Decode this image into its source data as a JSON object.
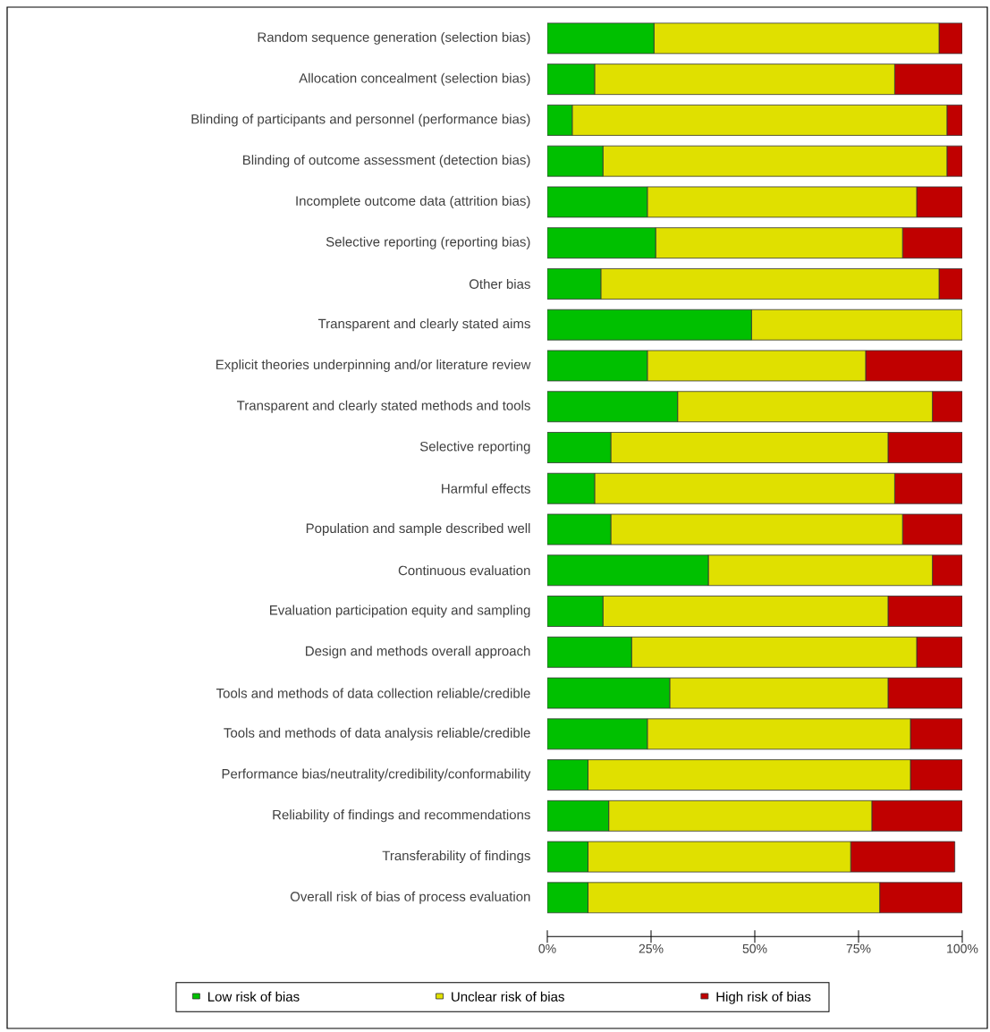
{
  "chart_data": {
    "type": "bar",
    "orientation": "horizontal",
    "stacked": true,
    "categories": [
      "Random sequence generation (selection bias)",
      "Allocation concealment (selection bias)",
      "Blinding of participants and personnel (performance bias)",
      "Blinding of outcome assessment (detection bias)",
      "Incomplete outcome data (attrition bias)",
      "Selective reporting (reporting bias)",
      "Other bias",
      "Transparent and clearly stated aims",
      "Explicit theories underpinning and/or literature review",
      "Transparent and clearly stated methods and tools",
      "Selective reporting",
      "Harmful effects",
      "Population and sample described well",
      "Continuous evaluation",
      "Evaluation participation equity and sampling",
      "Design and methods overall approach",
      "Tools and methods of data collection reliable/credible",
      "Tools and methods of data analysis reliable/credible",
      "Performance bias/neutrality/credibility/conformability",
      "Reliability of findings and recommendations",
      "Transferability of findings",
      "Overall risk of bias of process evaluation"
    ],
    "series": [
      {
        "name": "Low risk of bias",
        "color": "#00c000",
        "values": [
          25.7,
          11.4,
          6.0,
          13.4,
          24.1,
          26.1,
          12.9,
          49.2,
          24.1,
          31.4,
          15.3,
          11.4,
          15.3,
          38.8,
          13.4,
          20.3,
          29.5,
          24.1,
          9.8,
          14.8,
          9.8,
          9.8
        ]
      },
      {
        "name": "Unclear risk of bias",
        "color": "#e0e000",
        "values": [
          68.7,
          72.3,
          90.3,
          82.9,
          64.9,
          59.5,
          81.5,
          50.8,
          52.6,
          61.4,
          66.8,
          72.3,
          70.3,
          54.0,
          68.7,
          68.7,
          52.6,
          63.4,
          77.7,
          63.4,
          63.3,
          70.3
        ]
      },
      {
        "name": "High risk of bias",
        "color": "#c00000",
        "values": [
          5.6,
          16.3,
          3.7,
          3.7,
          11.0,
          14.4,
          5.6,
          0,
          23.3,
          7.2,
          17.9,
          16.3,
          14.4,
          7.2,
          17.9,
          11.0,
          17.9,
          12.5,
          12.5,
          21.8,
          25.1,
          19.9
        ]
      }
    ],
    "xlim": [
      0,
      100
    ],
    "xticks": [
      {
        "value": 0,
        "label": "0%"
      },
      {
        "value": 25,
        "label": "25%"
      },
      {
        "value": 50,
        "label": "50%"
      },
      {
        "value": 75,
        "label": "75%"
      },
      {
        "value": 100,
        "label": "100%"
      }
    ],
    "legend": "bottom"
  }
}
